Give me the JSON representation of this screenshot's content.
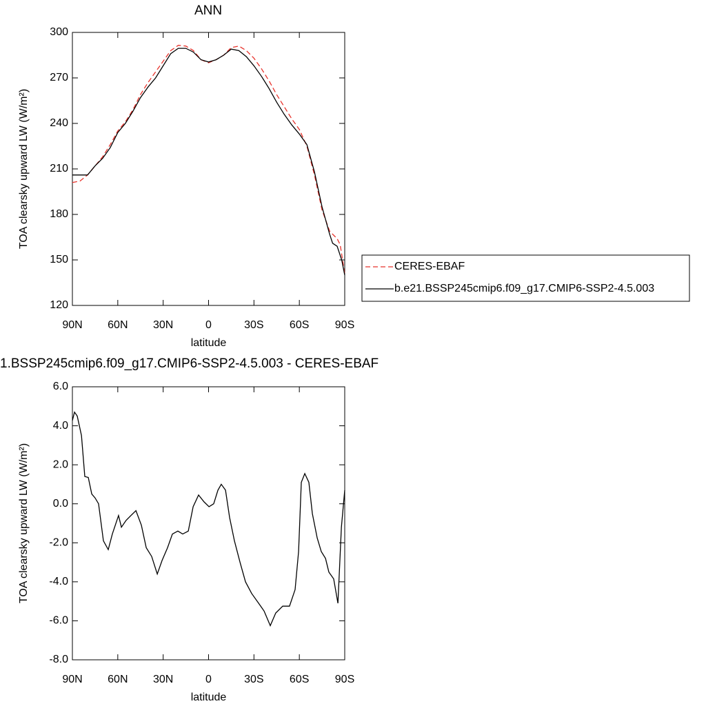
{
  "chart_data": [
    {
      "type": "line",
      "title": "ANN",
      "xlabel": "latitude",
      "ylabel": "TOA clearsky upward LW (W/m²)",
      "xlim": [
        90,
        -90
      ],
      "xticks": [
        {
          "value": 90,
          "label": "90N"
        },
        {
          "value": 60,
          "label": "60N"
        },
        {
          "value": 30,
          "label": "30N"
        },
        0,
        {
          "value": -30,
          "label": "30S"
        },
        {
          "value": -60,
          "label": "60S"
        },
        {
          "value": -90,
          "label": "90S"
        }
      ],
      "ylim": [
        120,
        300
      ],
      "yticks": [
        120,
        150,
        180,
        210,
        240,
        270,
        300
      ],
      "legend": "right",
      "series": [
        {
          "name": "CERES-EBAF",
          "color": "#e8322b",
          "dash": "dashed",
          "x": [
            90,
            85,
            80,
            75,
            70,
            65,
            60,
            55,
            50,
            45,
            40,
            35,
            30,
            25,
            20,
            15,
            10,
            5,
            0,
            -5,
            -10,
            -15,
            -20,
            -25,
            -30,
            -35,
            -40,
            -45,
            -50,
            -55,
            -60,
            -65,
            -70,
            -75,
            -80,
            -85,
            -87,
            -90
          ],
          "values": [
            201,
            202,
            206,
            212,
            218,
            226,
            235,
            241,
            249,
            259,
            267,
            274,
            281,
            288,
            291.5,
            291,
            288,
            282,
            280,
            282,
            285,
            290,
            291,
            288,
            283,
            276,
            268,
            259,
            251,
            243,
            236,
            225,
            206,
            183,
            169,
            164,
            160,
            141
          ]
        },
        {
          "name": "b.e21.BSSP245cmip6.f09_g17.CMIP6-SSP2-4.5.003",
          "color": "#000000",
          "dash": "solid",
          "x": [
            90,
            85,
            80,
            75,
            70,
            65,
            60,
            55,
            50,
            45,
            40,
            35,
            30,
            25,
            20,
            15,
            10,
            5,
            0,
            -5,
            -10,
            -15,
            -20,
            -25,
            -30,
            -35,
            -40,
            -45,
            -50,
            -55,
            -60,
            -65,
            -70,
            -75,
            -80,
            -82,
            -85,
            -88,
            -90
          ],
          "values": [
            206,
            206,
            206,
            212,
            217,
            224,
            234,
            240,
            248,
            257,
            264,
            270,
            278,
            286,
            289.5,
            289.5,
            287,
            282,
            280.5,
            282,
            285,
            289,
            288,
            284,
            278,
            271,
            263,
            254,
            246,
            239,
            233,
            226,
            208,
            185,
            167,
            161,
            159,
            150,
            140
          ]
        }
      ]
    },
    {
      "type": "line",
      "title": "1.BSSP245cmip6.f09_g17.CMIP6-SSP2-4.5.003 - CERES-EBAF",
      "xlabel": "latitude",
      "ylabel": "TOA clearsky upward LW (W/m²)",
      "xlim": [
        90,
        -90
      ],
      "xticks": [
        {
          "value": 90,
          "label": "90N"
        },
        {
          "value": 60,
          "label": "60N"
        },
        {
          "value": 30,
          "label": "30N"
        },
        0,
        {
          "value": -30,
          "label": "30S"
        },
        {
          "value": -60,
          "label": "60S"
        },
        {
          "value": -90,
          "label": "90S"
        }
      ],
      "ylim": [
        -8,
        6
      ],
      "yticks": [
        {
          "value": -8,
          "label": "-8.0"
        },
        {
          "value": -6,
          "label": "-6.0"
        },
        {
          "value": -4,
          "label": "-4.0"
        },
        {
          "value": -2,
          "label": "-2.0"
        },
        {
          "value": 0,
          "label": "0.0"
        },
        {
          "value": 2,
          "label": "2.0"
        },
        {
          "value": 4,
          "label": "4.0"
        },
        {
          "value": 6,
          "label": "6.0"
        }
      ],
      "series": [
        {
          "color": "#000000",
          "dash": "solid",
          "x": [
            90,
            88.6,
            86.8,
            84,
            81.8,
            79.5,
            77.2,
            75,
            72.7,
            69.5,
            66.3,
            63.6,
            59.5,
            57.6,
            54.5,
            51.3,
            48,
            44.4,
            41.2,
            37.6,
            33.9,
            30.7,
            27.1,
            23.9,
            20.3,
            17.1,
            13.4,
            10.2,
            6.6,
            3,
            -0.3,
            -3.4,
            -6.2,
            -8.4,
            -11.2,
            -13.9,
            -17.1,
            -20.8,
            -24.4,
            -28.5,
            -33.1,
            -36.7,
            -40.8,
            -44.4,
            -49,
            -53.5,
            -57.2,
            -59.5,
            -61.3,
            -63.6,
            -66.3,
            -68.6,
            -71.8,
            -74.5,
            -77.3,
            -79.5,
            -82.7,
            -85.5,
            -87.8,
            -90
          ],
          "values": [
            4.27,
            4.7,
            4.5,
            3.5,
            1.4,
            1.35,
            0.5,
            0.3,
            0.0,
            -1.9,
            -2.35,
            -1.55,
            -0.6,
            -1.2,
            -0.85,
            -0.6,
            -0.35,
            -1.1,
            -2.25,
            -2.7,
            -3.6,
            -2.9,
            -2.25,
            -1.55,
            -1.4,
            -1.55,
            -1.4,
            -0.15,
            0.45,
            0.1,
            -0.15,
            0,
            0.7,
            1.0,
            0.7,
            -0.7,
            -1.9,
            -3.0,
            -4.0,
            -4.6,
            -5.1,
            -5.5,
            -6.25,
            -5.6,
            -5.25,
            -5.25,
            -4.4,
            -2.45,
            1.1,
            1.55,
            1.1,
            -0.5,
            -1.75,
            -2.45,
            -2.8,
            -3.5,
            -3.85,
            -5.1,
            -1.2,
            0.7
          ]
        }
      ]
    }
  ]
}
